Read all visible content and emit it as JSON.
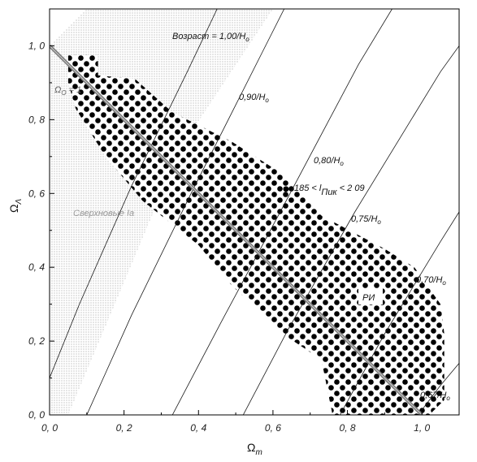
{
  "chart_data": {
    "type": "scatter",
    "xlabel": "Ω",
    "xlabel_sub": "m",
    "ylabel": "Ω",
    "ylabel_sub": "Λ",
    "xlim": [
      0,
      1.1
    ],
    "ylim": [
      0,
      1.1
    ],
    "xticks": [
      "0, 0",
      "0, 2",
      "0, 4",
      "0, 6",
      "0, 8",
      "1, 0"
    ],
    "yticks": [
      "0, 0",
      "0, 2",
      "0, 4",
      "0, 6",
      "0, 8",
      "1, 0"
    ],
    "grid": false,
    "flat_line": {
      "label": "Ω",
      "label_sub": "O",
      "label_tail": " = 1",
      "x": [
        0,
        1
      ],
      "y": [
        1,
        0
      ]
    },
    "age_contours": [
      {
        "label": "Возраст = 1,00/H",
        "label_sub": "o",
        "points": [
          [
            0.0,
            0.1
          ],
          [
            0.08,
            0.3
          ],
          [
            0.22,
            0.62
          ],
          [
            0.37,
            0.93
          ],
          [
            0.45,
            1.1
          ]
        ]
      },
      {
        "label": "0,90/H",
        "label_sub": "o",
        "points": [
          [
            0.1,
            0.0
          ],
          [
            0.22,
            0.27
          ],
          [
            0.38,
            0.6
          ],
          [
            0.57,
            0.98
          ],
          [
            0.63,
            1.1
          ]
        ]
      },
      {
        "label": "0,80/H",
        "label_sub": "o",
        "points": [
          [
            0.33,
            0.0
          ],
          [
            0.46,
            0.25
          ],
          [
            0.63,
            0.57
          ],
          [
            0.83,
            0.95
          ],
          [
            0.92,
            1.1
          ]
        ]
      },
      {
        "label": "0,75/H",
        "label_sub": "o",
        "points": [
          [
            0.52,
            0.0
          ],
          [
            0.64,
            0.23
          ],
          [
            0.82,
            0.55
          ],
          [
            1.05,
            0.93
          ],
          [
            1.1,
            1.0
          ]
        ]
      },
      {
        "label": "0,70/H",
        "label_sub": "o",
        "points": [
          [
            0.78,
            0.0
          ],
          [
            0.9,
            0.22
          ],
          [
            1.05,
            0.47
          ],
          [
            1.1,
            0.55
          ]
        ]
      },
      {
        "label": "0,67/H",
        "label_sub": "o",
        "points": [
          [
            0.99,
            0.0
          ],
          [
            1.05,
            0.08
          ],
          [
            1.1,
            0.14
          ]
        ]
      }
    ],
    "sn_region": {
      "label": "Сверхновые Ia",
      "polygon": [
        [
          0.0,
          1.0
        ],
        [
          0.0,
          0.0
        ],
        [
          0.05,
          0.0
        ],
        [
          0.35,
          0.72
        ],
        [
          0.6,
          1.1
        ],
        [
          0.1,
          1.1
        ]
      ]
    },
    "cmb_region": {
      "label": "РИ",
      "polygon": [
        [
          0.05,
          0.975
        ],
        [
          0.13,
          0.975
        ],
        [
          0.13,
          0.92
        ],
        [
          0.23,
          0.91
        ],
        [
          0.33,
          0.82
        ],
        [
          0.49,
          0.74
        ],
        [
          0.63,
          0.65
        ],
        [
          0.73,
          0.54
        ],
        [
          0.9,
          0.45
        ],
        [
          0.98,
          0.4
        ],
        [
          1.05,
          0.3
        ],
        [
          1.06,
          0.22
        ],
        [
          1.06,
          0.04
        ],
        [
          1.02,
          0.0
        ],
        [
          0.76,
          0.0
        ],
        [
          0.73,
          0.15
        ],
        [
          0.64,
          0.21
        ],
        [
          0.49,
          0.35
        ],
        [
          0.4,
          0.46
        ],
        [
          0.25,
          0.58
        ],
        [
          0.15,
          0.7
        ],
        [
          0.07,
          0.83
        ],
        [
          0.05,
          0.9
        ]
      ]
    },
    "peak_label": {
      "text": "185 < l",
      "sub": "Пик",
      "tail": " < 2 09",
      "x": 0.635,
      "y": 0.612
    }
  }
}
